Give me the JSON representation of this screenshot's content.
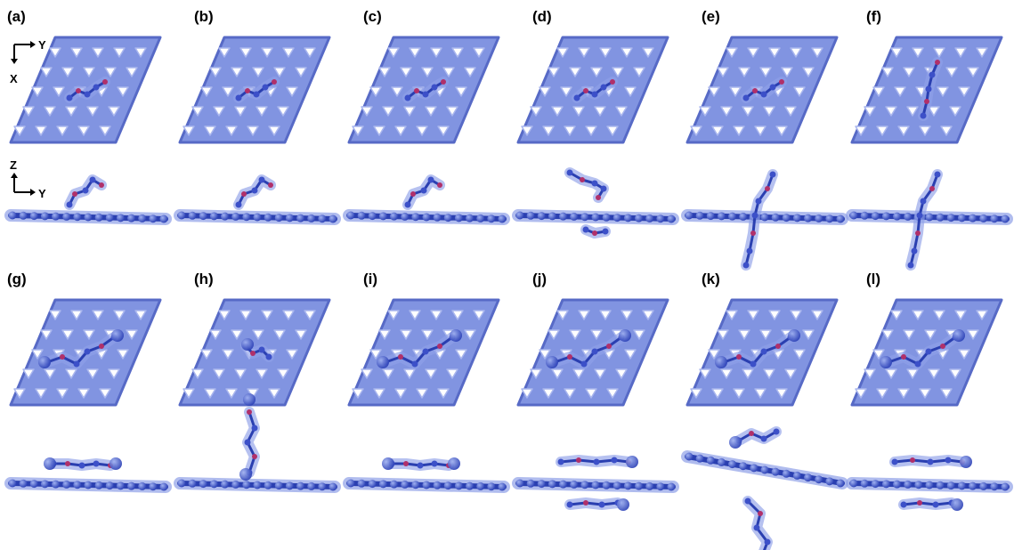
{
  "figure": {
    "axis_top": {
      "horizontal": "Y",
      "vertical": "X"
    },
    "axis_side": {
      "horizontal": "Y",
      "vertical": "Z"
    },
    "colors": {
      "sheet_fill": "#7b8fe0",
      "sheet_edge": "#4f63c4",
      "sheet_hole": "#ffffff",
      "atom": "#3c50c8",
      "atom_glow": "#8fa0e8",
      "oxygen": "#b0306a",
      "bond": "#2a3fb0"
    },
    "panels": [
      {
        "label": "(a)",
        "molecule": "above",
        "top_molecule": "small"
      },
      {
        "label": "(b)",
        "molecule": "above",
        "top_molecule": "small"
      },
      {
        "label": "(c)",
        "molecule": "above",
        "top_molecule": "small"
      },
      {
        "label": "(d)",
        "molecule": "both",
        "top_molecule": "small"
      },
      {
        "label": "(e)",
        "molecule": "through",
        "top_molecule": "small"
      },
      {
        "label": "(f)",
        "molecule": "through",
        "top_molecule": "long"
      },
      {
        "label": "(g)",
        "molecule": "flat-above",
        "top_molecule": "large"
      },
      {
        "label": "(h)",
        "molecule": "upright",
        "top_molecule": "cluster"
      },
      {
        "label": "(i)",
        "molecule": "flat-above",
        "top_molecule": "large"
      },
      {
        "label": "(j)",
        "molecule": "flat-both",
        "top_molecule": "large"
      },
      {
        "label": "(k)",
        "molecule": "tilted-both",
        "top_molecule": "large"
      },
      {
        "label": "(l)",
        "molecule": "flat-both",
        "top_molecule": "large"
      }
    ]
  }
}
